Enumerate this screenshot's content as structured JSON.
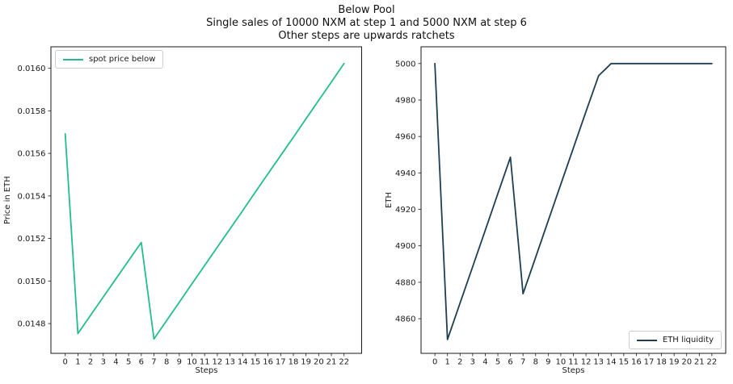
{
  "figure_title": {
    "line1": "Below Pool",
    "line2": "Single sales of 10000 NXM at step 1 and 5000 NXM at step 6",
    "line3": "Other steps are upwards ratchets"
  },
  "chart_data": [
    {
      "id": "spot-price-below",
      "type": "line",
      "legend": "spot price below",
      "legend_loc": "upper left",
      "color": "#22bd8e",
      "xlabel": "Steps",
      "ylabel": "Price in ETH",
      "grid": false,
      "x": [
        0,
        1,
        2,
        3,
        4,
        5,
        6,
        7,
        8,
        9,
        10,
        11,
        12,
        13,
        14,
        15,
        16,
        17,
        18,
        19,
        20,
        21,
        22
      ],
      "y": [
        0.015692,
        0.014753,
        0.014839,
        0.014925,
        0.01501,
        0.015096,
        0.015181,
        0.014728,
        0.014814,
        0.0149,
        0.014987,
        0.015073,
        0.015159,
        0.015245,
        0.015331,
        0.015418,
        0.015504,
        0.01559,
        0.015676,
        0.015763,
        0.015849,
        0.015935,
        0.016022
      ],
      "xticks": [
        0,
        1,
        2,
        3,
        4,
        5,
        6,
        7,
        8,
        9,
        10,
        11,
        12,
        13,
        14,
        15,
        16,
        17,
        18,
        19,
        20,
        21,
        22
      ],
      "yticks": [
        0.0148,
        0.015,
        0.0152,
        0.0154,
        0.0156,
        0.0158,
        0.016
      ],
      "ytick_labels": [
        "0.0148",
        "0.0150",
        "0.0152",
        "0.0154",
        "0.0156",
        "0.0158",
        "0.0160"
      ],
      "xlim": [
        -1.13,
        23.39
      ],
      "ylim": [
        0.01466,
        0.016101
      ]
    },
    {
      "id": "eth-liquidity",
      "type": "line",
      "legend": "ETH liquidity",
      "legend_loc": "lower right",
      "color": "#1e3f51",
      "xlabel": "Steps",
      "ylabel": "ETH",
      "grid": false,
      "x": [
        0,
        1,
        2,
        3,
        4,
        5,
        6,
        7,
        8,
        9,
        10,
        11,
        12,
        13,
        14,
        15,
        16,
        17,
        18,
        19,
        20,
        21,
        22
      ],
      "y": [
        5000,
        4848.6,
        4868.6,
        4888.6,
        4908.6,
        4928.6,
        4948.6,
        4873.7,
        4893.7,
        4913.7,
        4933.7,
        4953.7,
        4973.7,
        4993.3,
        5000,
        5000,
        5000,
        5000,
        5000,
        5000,
        5000,
        5000,
        5000
      ],
      "xticks": [
        0,
        1,
        2,
        3,
        4,
        5,
        6,
        7,
        8,
        9,
        10,
        11,
        12,
        13,
        14,
        15,
        16,
        17,
        18,
        19,
        20,
        21,
        22
      ],
      "yticks": [
        4860,
        4880,
        4900,
        4920,
        4940,
        4960,
        4980,
        5000
      ],
      "ytick_labels": [
        "4860",
        "4880",
        "4900",
        "4920",
        "4940",
        "4960",
        "4980",
        "5000"
      ],
      "xlim": [
        -1.1,
        23.1
      ],
      "ylim": [
        4841,
        5009.2
      ]
    }
  ]
}
